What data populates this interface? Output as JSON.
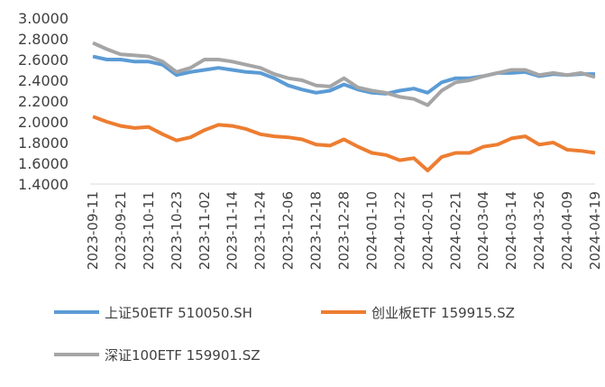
{
  "chart_data": {
    "type": "line",
    "categories": [
      "2023-09-11",
      null,
      "2023-09-21",
      null,
      "2023-10-11",
      null,
      "2023-10-23",
      null,
      "2023-11-02",
      null,
      "2023-11-14",
      null,
      "2023-11-24",
      null,
      "2023-12-06",
      null,
      "2023-12-18",
      null,
      "2023-12-28",
      null,
      "2024-01-10",
      null,
      "2024-01-22",
      null,
      "2024-02-01",
      null,
      "2024-02-21",
      null,
      "2024-03-04",
      null,
      "2024-03-14",
      null,
      "2024-03-26",
      null,
      "2024-04-09",
      null,
      "2024-04-19"
    ],
    "series": [
      {
        "name": "上证50ETF 510050.SH",
        "color": "#5b9bd5",
        "values": [
          2.63,
          2.6,
          2.6,
          2.58,
          2.58,
          2.55,
          2.45,
          2.48,
          2.5,
          2.52,
          2.5,
          2.48,
          2.47,
          2.42,
          2.35,
          2.31,
          2.28,
          2.3,
          2.36,
          2.31,
          2.28,
          2.27,
          2.3,
          2.32,
          2.28,
          2.38,
          2.42,
          2.42,
          2.44,
          2.47,
          2.47,
          2.48,
          2.44,
          2.46,
          2.45,
          2.46,
          2.46
        ]
      },
      {
        "name": "创业板ETF 159915.SZ",
        "color": "#ed7d31",
        "values": [
          2.05,
          2.0,
          1.96,
          1.94,
          1.95,
          1.88,
          1.82,
          1.85,
          1.92,
          1.97,
          1.96,
          1.93,
          1.88,
          1.86,
          1.85,
          1.83,
          1.78,
          1.77,
          1.83,
          1.76,
          1.7,
          1.68,
          1.63,
          1.65,
          1.53,
          1.66,
          1.7,
          1.7,
          1.76,
          1.78,
          1.84,
          1.86,
          1.78,
          1.8,
          1.73,
          1.72,
          1.7
        ]
      },
      {
        "name": "深证100ETF 159901.SZ",
        "color": "#a5a5a5",
        "values": [
          2.76,
          2.7,
          2.65,
          2.64,
          2.63,
          2.58,
          2.48,
          2.52,
          2.6,
          2.6,
          2.58,
          2.55,
          2.52,
          2.46,
          2.42,
          2.4,
          2.35,
          2.34,
          2.42,
          2.33,
          2.3,
          2.28,
          2.24,
          2.22,
          2.16,
          2.3,
          2.38,
          2.4,
          2.44,
          2.47,
          2.5,
          2.5,
          2.45,
          2.47,
          2.45,
          2.47,
          2.43
        ]
      }
    ],
    "ylim": [
      1.4,
      3.0
    ],
    "yticks": [
      {
        "value": 1.4,
        "label": "1.4000"
      },
      {
        "value": 1.6,
        "label": "1.6000"
      },
      {
        "value": 1.8,
        "label": "1.8000"
      },
      {
        "value": 2.0,
        "label": "2.0000"
      },
      {
        "value": 2.2,
        "label": "2.2000"
      },
      {
        "value": 2.4,
        "label": "2.4000"
      },
      {
        "value": 2.6,
        "label": "2.6000"
      },
      {
        "value": 2.8,
        "label": "2.8000"
      },
      {
        "value": 3.0,
        "label": "3.0000"
      }
    ],
    "grid": false,
    "legend": "bottom"
  }
}
